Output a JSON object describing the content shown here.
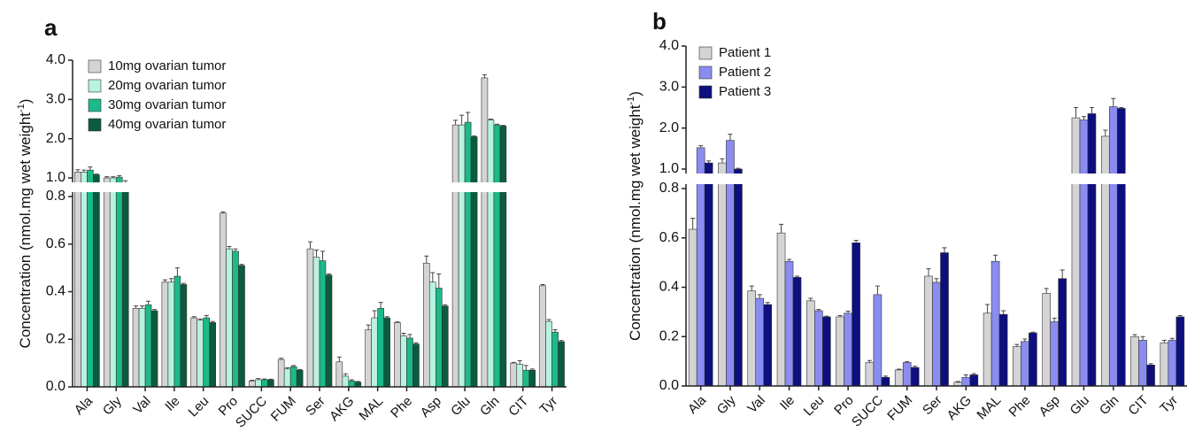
{
  "chart_data": [
    {
      "type": "bar",
      "title": "a",
      "y_label": "Concentration (nmol.mg wet weight",
      "y_label_sup": "-1",
      "y_label_end": ")",
      "categories": [
        "Ala",
        "Gly",
        "Val",
        "Ile",
        "Leu",
        "Pro",
        "SUCC",
        "FUM",
        "Ser",
        "AKG",
        "MAL",
        "Phe",
        "Asp",
        "Glu",
        "Gln",
        "CIT",
        "Tyr"
      ],
      "ylim": [
        0,
        4.0
      ],
      "ybreak": [
        0.8,
        1.0
      ],
      "yticks": [
        {
          "value": 0,
          "label": "0.0"
        },
        0.2,
        0.4,
        0.6,
        0.8,
        {
          "value": 1,
          "label": "1.0"
        },
        {
          "value": 2,
          "label": "2.0"
        },
        {
          "value": 3,
          "label": "3.0"
        },
        {
          "value": 4,
          "label": "4.0"
        }
      ],
      "legend": "top-left",
      "series": [
        {
          "name": "10mg ovarian tumor",
          "color": "#d4d4d4",
          "values": [
            1.15,
            1.0,
            0.33,
            0.44,
            0.29,
            0.73,
            0.025,
            0.115,
            0.58,
            0.105,
            0.24,
            0.27,
            0.52,
            2.35,
            3.55,
            0.1,
            0.425
          ],
          "errors": [
            0.06,
            0.03,
            0.01,
            0.01,
            0.005,
            0.005,
            0.003,
            0.005,
            0.03,
            0.02,
            0.02,
            0.003,
            0.03,
            0.12,
            0.08,
            0.003,
            0.005
          ]
        },
        {
          "name": "20mg ovarian tumor",
          "color": "#b8f3df",
          "values": [
            1.15,
            1.0,
            0.33,
            0.44,
            0.28,
            0.58,
            0.03,
            0.075,
            0.545,
            0.045,
            0.29,
            0.215,
            0.44,
            2.35,
            2.48,
            0.095,
            0.275
          ],
          "errors": [
            0.05,
            0.03,
            0.01,
            0.015,
            0.005,
            0.01,
            0.005,
            0.005,
            0.03,
            0.01,
            0.03,
            0.01,
            0.04,
            0.25,
            0.02,
            0.015,
            0.008
          ]
        },
        {
          "name": "30mg ovarian tumor",
          "color": "#1cb98a",
          "values": [
            1.2,
            1.02,
            0.345,
            0.465,
            0.29,
            0.57,
            0.03,
            0.085,
            0.53,
            0.025,
            0.33,
            0.205,
            0.415,
            2.42,
            2.35,
            0.07,
            0.23
          ],
          "errors": [
            0.08,
            0.04,
            0.015,
            0.035,
            0.01,
            0.01,
            0.003,
            0.005,
            0.04,
            0.005,
            0.025,
            0.015,
            0.06,
            0.25,
            0.02,
            0.02,
            0.01
          ]
        },
        {
          "name": "40mg ovarian tumor",
          "color": "#0b5b3e",
          "values": [
            1.08,
            0.95,
            0.32,
            0.43,
            0.27,
            0.51,
            0.03,
            0.07,
            0.47,
            0.02,
            0.29,
            0.18,
            0.34,
            2.05,
            2.32,
            0.07,
            0.19
          ],
          "errors": [
            0.02,
            0.02,
            0.005,
            0.005,
            0.005,
            0.005,
            0.002,
            0.003,
            0.005,
            0.003,
            0.005,
            0.005,
            0.005,
            0.02,
            0.02,
            0.005,
            0.005
          ]
        }
      ]
    },
    {
      "type": "bar",
      "title": "b",
      "y_label": "Concentration (nmol.mg wet weight",
      "y_label_sup": "-1",
      "y_label_end": ")",
      "categories": [
        "Ala",
        "Gly",
        "Val",
        "Ile",
        "Leu",
        "Pro",
        "SUCC",
        "FUM",
        "Ser",
        "AKG",
        "MAL",
        "Phe",
        "Asp",
        "Glu",
        "Gln",
        "CIT",
        "Tyr"
      ],
      "ylim": [
        0,
        4.0
      ],
      "ybreak": [
        0.8,
        1.0
      ],
      "yticks": [
        {
          "value": 0,
          "label": "0.0"
        },
        0.2,
        0.4,
        0.6,
        0.8,
        {
          "value": 1,
          "label": "1.0"
        },
        {
          "value": 2,
          "label": "2.0"
        },
        {
          "value": 3,
          "label": "3.0"
        },
        {
          "value": 4,
          "label": "4.0"
        }
      ],
      "legend": "top-left",
      "series": [
        {
          "name": "Patient 1",
          "color": "#d4d4d4",
          "values": [
            0.635,
            1.15,
            0.385,
            0.62,
            0.345,
            0.28,
            0.095,
            0.065,
            0.445,
            0.015,
            0.295,
            0.16,
            0.375,
            2.25,
            1.8,
            0.2,
            0.175
          ],
          "errors": [
            0.045,
            0.1,
            0.02,
            0.035,
            0.01,
            0.005,
            0.008,
            0.003,
            0.03,
            0.003,
            0.035,
            0.008,
            0.02,
            0.25,
            0.15,
            0.008,
            0.01
          ]
        },
        {
          "name": "Patient 2",
          "color": "#8a8cf0",
          "values": [
            1.52,
            1.7,
            0.355,
            0.505,
            0.305,
            0.295,
            0.37,
            0.095,
            0.42,
            0.035,
            0.505,
            0.18,
            0.26,
            2.2,
            2.52,
            0.185,
            0.185
          ],
          "errors": [
            0.05,
            0.15,
            0.015,
            0.008,
            0.005,
            0.008,
            0.035,
            0.003,
            0.015,
            0.01,
            0.025,
            0.01,
            0.015,
            0.08,
            0.2,
            0.015,
            0.008
          ]
        },
        {
          "name": "Patient 3",
          "color": "#0d0f7e",
          "values": [
            1.15,
            1.0,
            0.33,
            0.44,
            0.28,
            0.58,
            0.035,
            0.075,
            0.54,
            0.045,
            0.29,
            0.215,
            0.435,
            2.35,
            2.48,
            0.085,
            0.28
          ],
          "errors": [
            0.05,
            0.02,
            0.008,
            0.005,
            0.003,
            0.01,
            0.005,
            0.005,
            0.02,
            0.005,
            0.015,
            0.003,
            0.035,
            0.15,
            0.02,
            0.005,
            0.005
          ]
        }
      ]
    }
  ]
}
